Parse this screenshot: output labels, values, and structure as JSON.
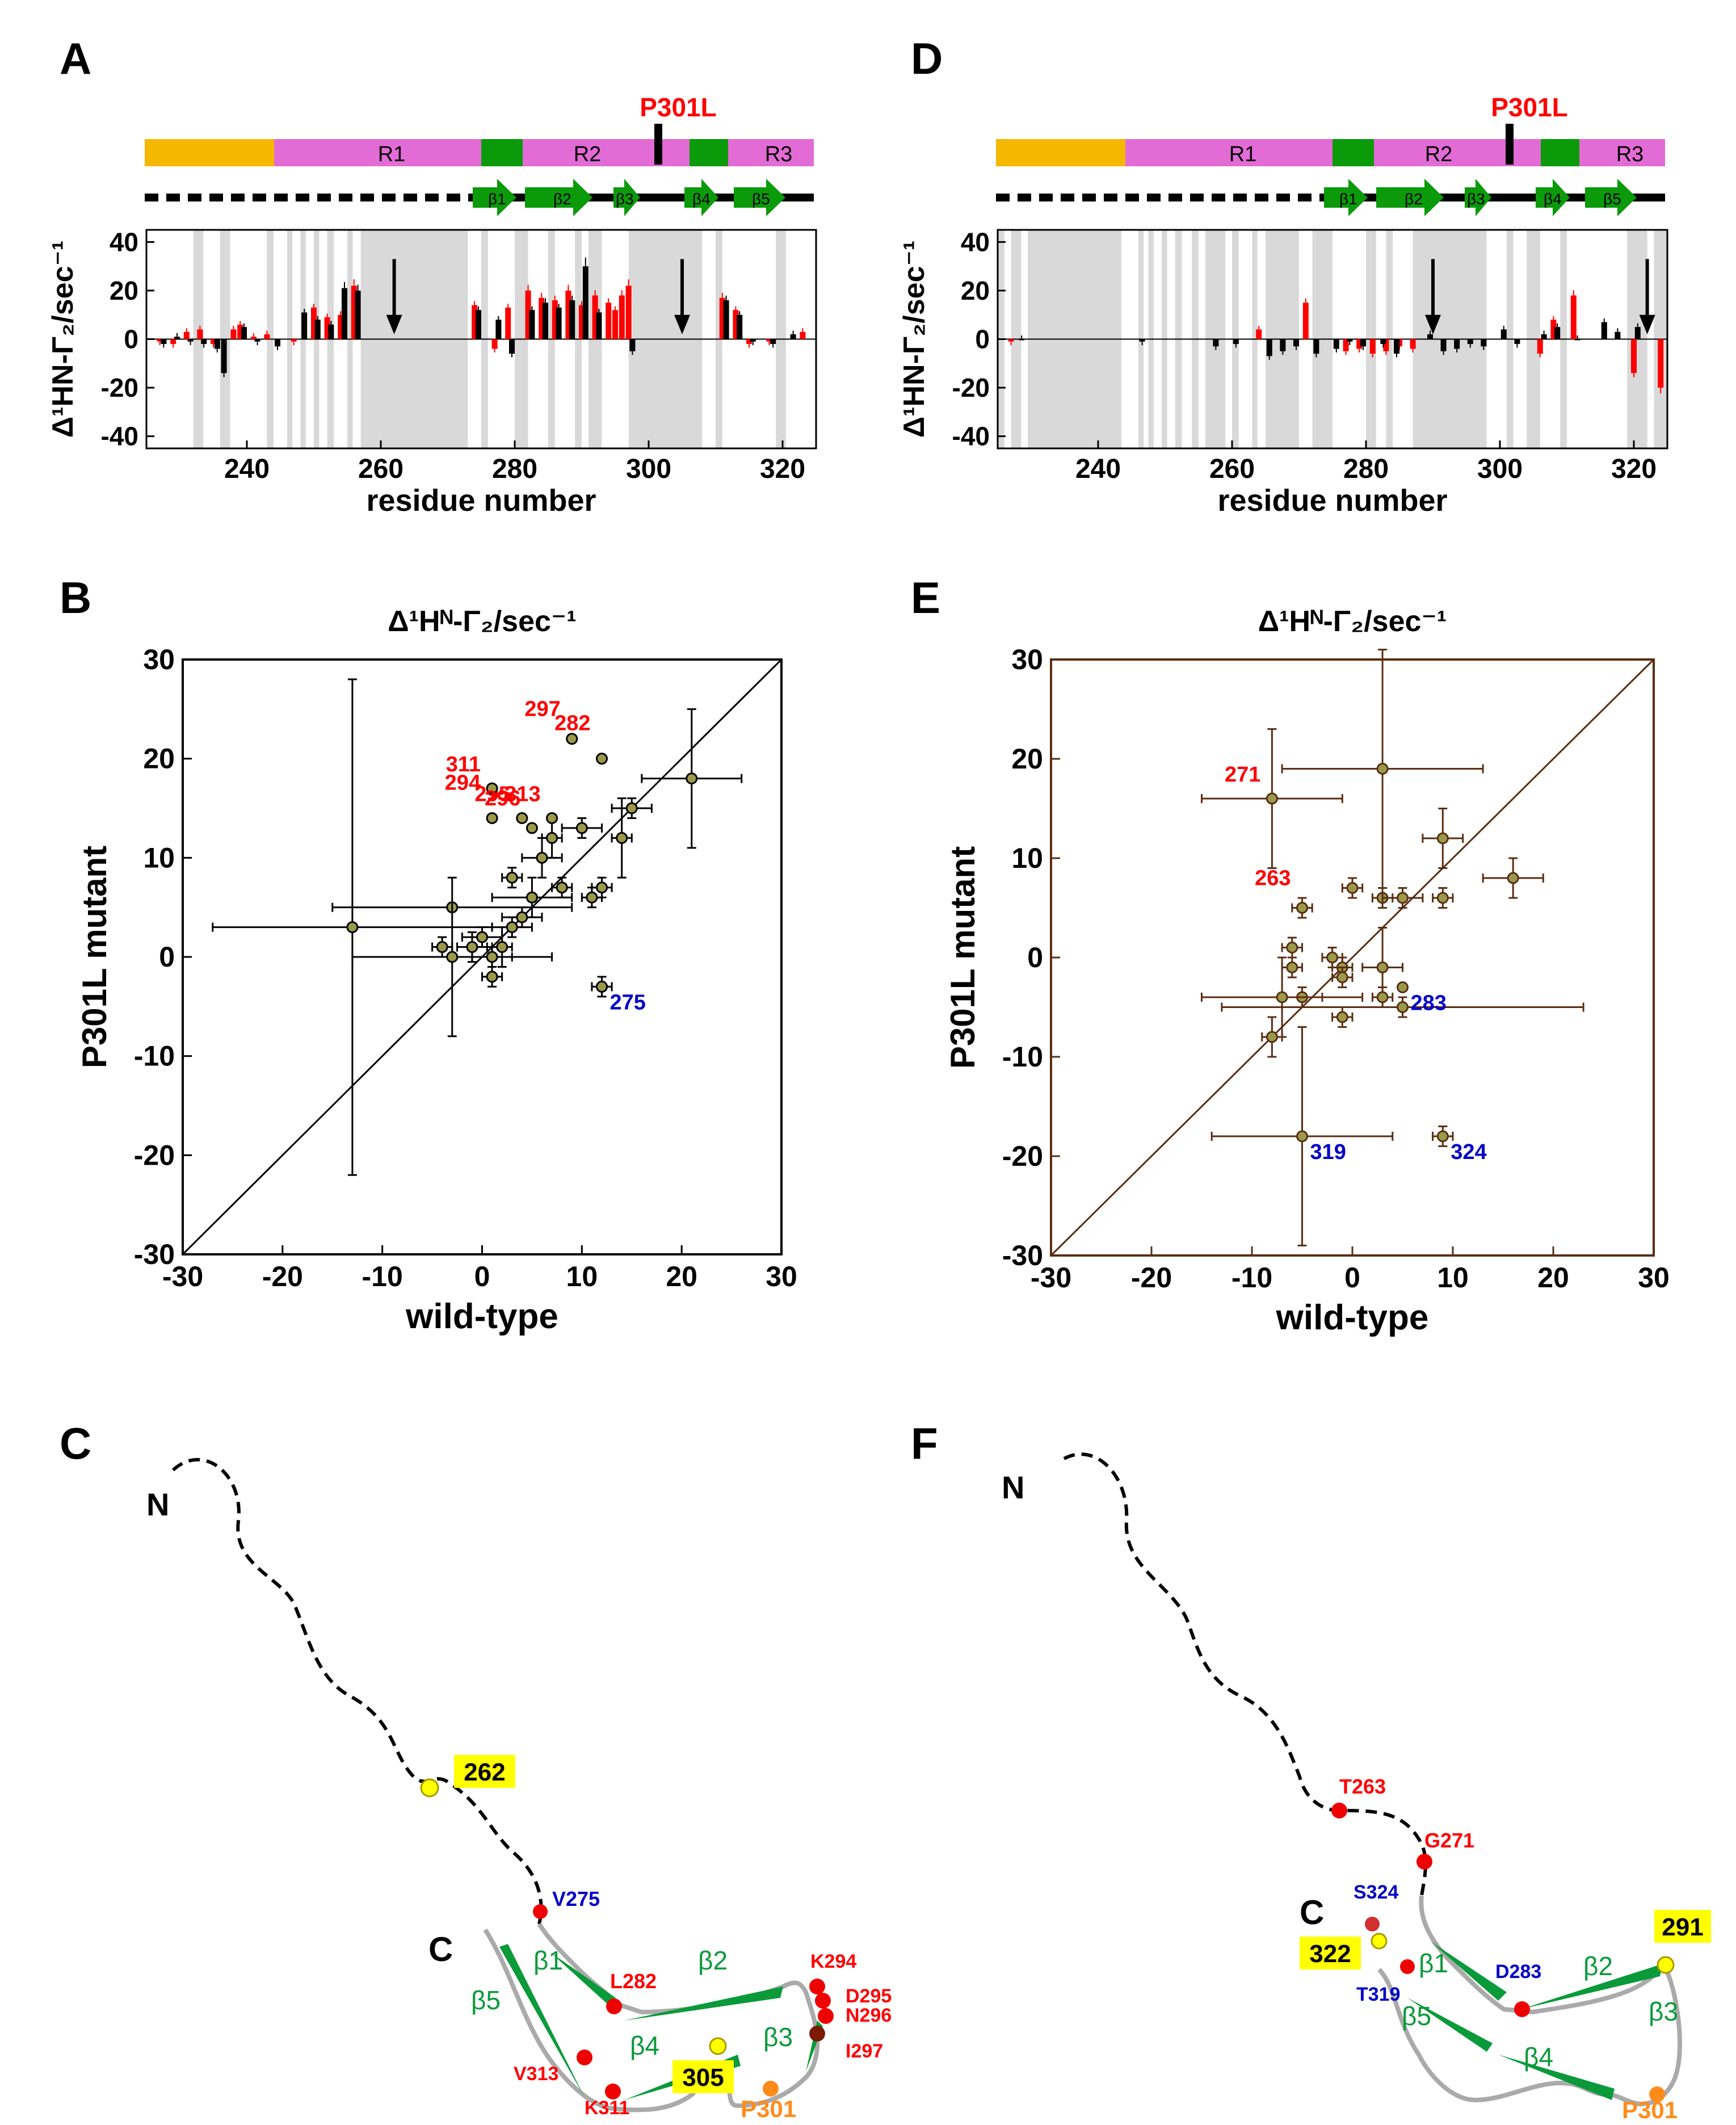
{
  "panels": {
    "A": "A",
    "B": "B",
    "C": "C",
    "D": "D",
    "E": "E",
    "F": "F"
  },
  "colors": {
    "nterm": "#f5b800",
    "repeat": "#e36bd6",
    "hexapeptide": "#0a9a0a",
    "bar_red": "#ff0000",
    "bar_black": "#000000",
    "shade": "#d9d9d9",
    "scatterB": "#000000",
    "scatterE": "#5a2d12",
    "label_red": "#ff0000",
    "label_blue": "#0000c8",
    "label_orange": "#ff8c1a",
    "strand_green": "#0a9a3a",
    "highlight": "#ffff00"
  },
  "schematic": {
    "mutation_label": "P301L",
    "repeats": [
      "R1",
      "R2",
      "R3"
    ],
    "strands": [
      "β1",
      "β2",
      "β3",
      "β4",
      "β5"
    ]
  },
  "chart_data": [
    {
      "id": "A",
      "type": "bar",
      "ylabel": "Δ¹HN-Γ₂/sec⁻¹",
      "xlabel": "residue number",
      "xlim": [
        225,
        325
      ],
      "ylim": [
        -45,
        45
      ],
      "xticks": [
        240,
        260,
        280,
        300,
        320
      ],
      "yticks": [
        -40,
        -20,
        0,
        20,
        40
      ],
      "shaded_ranges": [
        [
          232,
          233.5
        ],
        [
          236,
          237.5
        ],
        [
          243,
          244
        ],
        [
          246,
          246.8
        ],
        [
          248,
          248.8
        ],
        [
          250,
          250.8
        ],
        [
          252,
          253
        ],
        [
          255,
          255.8
        ],
        [
          257,
          273
        ],
        [
          275,
          276
        ],
        [
          280,
          282
        ],
        [
          285,
          286
        ],
        [
          289,
          290
        ],
        [
          291,
          293
        ],
        [
          297,
          308
        ],
        [
          310,
          311
        ],
        [
          319,
          320.5
        ]
      ],
      "arrows_at": [
        262,
        305
      ],
      "series": [
        {
          "name": "P301L",
          "color": "#ff0000",
          "x": [
            227,
            229,
            231,
            233,
            235,
            238,
            239,
            241,
            243,
            247,
            250,
            252,
            254,
            256,
            274,
            277,
            279,
            282,
            284,
            286,
            288,
            290,
            292,
            294,
            295,
            296,
            297,
            311,
            313,
            315,
            318,
            323
          ],
          "y": [
            -1,
            -2,
            3,
            4,
            -2,
            4,
            6,
            1,
            2,
            -1,
            13,
            9,
            10,
            22,
            14,
            -4,
            13,
            20,
            17,
            16,
            20,
            14,
            18,
            15,
            12,
            18,
            22,
            17,
            12,
            -2,
            -1,
            3
          ]
        },
        {
          "name": "wild-type",
          "color": "#000000",
          "x": [
            228,
            230,
            232,
            234,
            236,
            237,
            240,
            242,
            245,
            249,
            251,
            253,
            255,
            257,
            275,
            278,
            280,
            283,
            285,
            287,
            289,
            291,
            293,
            298,
            312,
            314,
            316,
            319,
            322
          ],
          "y": [
            -2,
            1,
            -1,
            -2,
            -4,
            -14,
            5,
            -1,
            -3,
            11,
            8,
            6,
            21,
            20,
            12,
            8,
            -6,
            12,
            15,
            13,
            16,
            30,
            11,
            -5,
            16,
            10,
            -1,
            -2,
            2
          ]
        }
      ]
    },
    {
      "id": "D",
      "type": "bar",
      "ylabel": "Δ¹HN-Γ₂/sec⁻¹",
      "xlabel": "residue number",
      "xlim": [
        225,
        325
      ],
      "ylim": [
        -45,
        45
      ],
      "xticks": [
        240,
        260,
        280,
        300,
        320
      ],
      "yticks": [
        -40,
        -20,
        0,
        20,
        40
      ],
      "shaded_ranges": [
        [
          225,
          226
        ],
        [
          227,
          228.5
        ],
        [
          229.5,
          243.5
        ],
        [
          246,
          246.8
        ],
        [
          247.5,
          248.3
        ],
        [
          249.5,
          250.3
        ],
        [
          251.5,
          252.5
        ],
        [
          254,
          255
        ],
        [
          256,
          259
        ],
        [
          260,
          261
        ],
        [
          263,
          263.8
        ],
        [
          265,
          270
        ],
        [
          272,
          275
        ],
        [
          280,
          281.5
        ],
        [
          283,
          284
        ],
        [
          287,
          298
        ],
        [
          301,
          302
        ],
        [
          304,
          306
        ],
        [
          309,
          310
        ],
        [
          319,
          322
        ],
        [
          323,
          325
        ]
      ],
      "arrows_at": [
        290,
        322
      ],
      "series": [
        {
          "name": "P301L",
          "color": "#ff0000",
          "x": [
            227,
            264,
            271,
            277,
            279,
            281,
            283,
            285,
            287,
            306,
            308,
            311,
            320,
            324
          ],
          "y": [
            -1,
            4,
            15,
            -5,
            -4,
            -6,
            -5,
            -3,
            -4,
            -6,
            8,
            18,
            -14,
            -20
          ]
        },
        {
          "name": "wild-type",
          "color": "#000000",
          "x": [
            229,
            247,
            258,
            261,
            266,
            268,
            270,
            273,
            276,
            278,
            280,
            283,
            285,
            290,
            292,
            294,
            296,
            298,
            301,
            303,
            307,
            309,
            312,
            316,
            318,
            321
          ],
          "y": [
            0,
            -1,
            -3,
            -2,
            -7,
            -5,
            -3,
            -6,
            -4,
            -1,
            -3,
            -2,
            -6,
            2,
            -5,
            -4,
            -2,
            -3,
            4,
            -2,
            2,
            5,
            0,
            7,
            3,
            5
          ]
        }
      ]
    },
    {
      "id": "B",
      "type": "scatter",
      "title": "Δ¹Hᴺ-Γ₂/sec⁻¹",
      "xlabel": "wild-type",
      "ylabel": "P301L mutant",
      "xlim": [
        -30,
        30
      ],
      "ylim": [
        -30,
        30
      ],
      "xticks": [
        -30,
        -20,
        -10,
        0,
        10,
        20,
        30
      ],
      "yticks": [
        -30,
        -20,
        -10,
        0,
        10,
        20,
        30
      ],
      "diagonal": true,
      "points": [
        {
          "x": -13,
          "y": 3,
          "xerr": 14,
          "yerr": 25
        },
        {
          "x": -3,
          "y": 5,
          "xerr": 12,
          "yerr": 0
        },
        {
          "x": -3,
          "y": 0,
          "xerr": 10,
          "yerr": 8
        },
        {
          "x": -4,
          "y": 1,
          "xerr": 1,
          "yerr": 1
        },
        {
          "x": -1,
          "y": 1,
          "xerr": 1.5,
          "yerr": 1.5
        },
        {
          "x": 0,
          "y": 2,
          "xerr": 2,
          "yerr": 1
        },
        {
          "x": 1,
          "y": 0,
          "xerr": 2,
          "yerr": 1
        },
        {
          "x": 1,
          "y": -2,
          "xerr": 1,
          "yerr": 1
        },
        {
          "x": 2,
          "y": 1,
          "xerr": 1,
          "yerr": 2
        },
        {
          "x": 3,
          "y": 3,
          "xerr": 2,
          "yerr": 1
        },
        {
          "x": 4,
          "y": 4,
          "xerr": 2,
          "yerr": 1
        },
        {
          "x": 3,
          "y": 8,
          "xerr": 1,
          "yerr": 1
        },
        {
          "x": 5,
          "y": 6,
          "xerr": 4,
          "yerr": 2
        },
        {
          "x": 6,
          "y": 10,
          "xerr": 2,
          "yerr": 2
        },
        {
          "x": 7,
          "y": 12,
          "xerr": 1,
          "yerr": 2
        },
        {
          "x": 8,
          "y": 7,
          "xerr": 1,
          "yerr": 1
        },
        {
          "x": 10,
          "y": 13,
          "xerr": 2,
          "yerr": 1
        },
        {
          "x": 12,
          "y": 7,
          "xerr": 1,
          "yerr": 1
        },
        {
          "x": 14,
          "y": 12,
          "xerr": 1,
          "yerr": 4
        },
        {
          "x": 15,
          "y": 15,
          "xerr": 2,
          "yerr": 1
        },
        {
          "x": 21,
          "y": 18,
          "xerr": 5,
          "yerr": 7
        },
        {
          "x": 11,
          "y": 6,
          "xerr": 1,
          "yerr": 1
        },
        {
          "x": 12,
          "y": -3,
          "xerr": 1,
          "yerr": 1
        }
      ],
      "labeled_points": [
        {
          "label": "295",
          "x": 4,
          "y": 14,
          "color": "red"
        },
        {
          "label": "297",
          "x": 9,
          "y": 22,
          "color": "red"
        },
        {
          "label": "282",
          "x": 12,
          "y": 20,
          "color": "red"
        },
        {
          "label": "311",
          "x": 1,
          "y": 17,
          "color": "red"
        },
        {
          "label": "296",
          "x": 5,
          "y": 13,
          "color": "red"
        },
        {
          "label": "294",
          "x": 1,
          "y": 14,
          "color": "red"
        },
        {
          "label": "313",
          "x": 7,
          "y": 14,
          "color": "red"
        },
        {
          "label": "275",
          "x": 12,
          "y": -3,
          "color": "blue"
        }
      ]
    },
    {
      "id": "E",
      "type": "scatter",
      "title": "Δ¹Hᴺ-Γ₂/sec⁻¹",
      "xlabel": "wild-type",
      "ylabel": "P301L mutant",
      "xlim": [
        -30,
        30
      ],
      "ylim": [
        -30,
        30
      ],
      "xticks": [
        -30,
        -20,
        -10,
        0,
        10,
        20,
        30
      ],
      "yticks": [
        -30,
        -20,
        -10,
        0,
        10,
        20,
        30
      ],
      "diagonal": true,
      "points": [
        {
          "x": 3,
          "y": 19,
          "xerr": 10,
          "yerr": 12
        },
        {
          "x": -8,
          "y": 16,
          "xerr": 7,
          "yerr": 7
        },
        {
          "x": 9,
          "y": 12,
          "xerr": 2,
          "yerr": 3
        },
        {
          "x": 16,
          "y": 8,
          "xerr": 3,
          "yerr": 2
        },
        {
          "x": -5,
          "y": 5,
          "xerr": 1,
          "yerr": 1
        },
        {
          "x": 0,
          "y": 7,
          "xerr": 1,
          "yerr": 1
        },
        {
          "x": 3,
          "y": 6,
          "xerr": 1,
          "yerr": 1
        },
        {
          "x": 5,
          "y": 6,
          "xerr": 2,
          "yerr": 1
        },
        {
          "x": 9,
          "y": 6,
          "xerr": 1,
          "yerr": 1
        },
        {
          "x": -6,
          "y": 1,
          "xerr": 1,
          "yerr": 1
        },
        {
          "x": -2,
          "y": 0,
          "xerr": 1,
          "yerr": 1
        },
        {
          "x": -1,
          "y": -1,
          "xerr": 1,
          "yerr": 1
        },
        {
          "x": -6,
          "y": -1,
          "xerr": 1,
          "yerr": 1
        },
        {
          "x": 3,
          "y": -1,
          "xerr": 2,
          "yerr": 4
        },
        {
          "x": -5,
          "y": -4,
          "xerr": 2,
          "yerr": 1
        },
        {
          "x": -7,
          "y": -4,
          "xerr": 8,
          "yerr": 4
        },
        {
          "x": -1,
          "y": -2,
          "xerr": 1,
          "yerr": 1
        },
        {
          "x": 3,
          "y": -4,
          "xerr": 1,
          "yerr": 1
        },
        {
          "x": -1,
          "y": -6,
          "xerr": 1,
          "yerr": 1
        },
        {
          "x": -8,
          "y": -8,
          "xerr": 1,
          "yerr": 2
        },
        {
          "x": 5,
          "y": -5,
          "xerr": 18,
          "yerr": 1
        }
      ],
      "labeled_points": [
        {
          "label": "271",
          "x": -8,
          "y": 16,
          "color": "red"
        },
        {
          "label": "263",
          "x": -5,
          "y": 5,
          "color": "red"
        },
        {
          "label": "283",
          "x": 5,
          "y": -3,
          "color": "blue"
        },
        {
          "label": "319",
          "x": -5,
          "y": -18,
          "xerr": 9,
          "yerr": 11,
          "color": "blue"
        },
        {
          "label": "324",
          "x": 9,
          "y": -18,
          "xerr": 1,
          "yerr": 1,
          "color": "blue"
        }
      ]
    }
  ],
  "structureC": {
    "n_label": "N",
    "c_label": "C",
    "highlight_labels": [
      "262",
      "305"
    ],
    "red_labels": [
      "L282",
      "K294",
      "D295",
      "N296",
      "I297",
      "V313",
      "K311"
    ],
    "blue_labels": [
      "V275"
    ],
    "orange_labels": [
      "P301"
    ],
    "strand_labels": [
      "β1",
      "β2",
      "β3",
      "β4",
      "β5"
    ]
  },
  "structureF": {
    "n_label": "N",
    "c_label": "C",
    "highlight_labels": [
      "291",
      "322"
    ],
    "red_labels": [
      "T263",
      "G271"
    ],
    "blue_labels": [
      "S324",
      "D283",
      "T319"
    ],
    "orange_labels": [
      "P301"
    ],
    "strand_labels": [
      "β1",
      "β2",
      "β3",
      "β4",
      "β5"
    ]
  }
}
